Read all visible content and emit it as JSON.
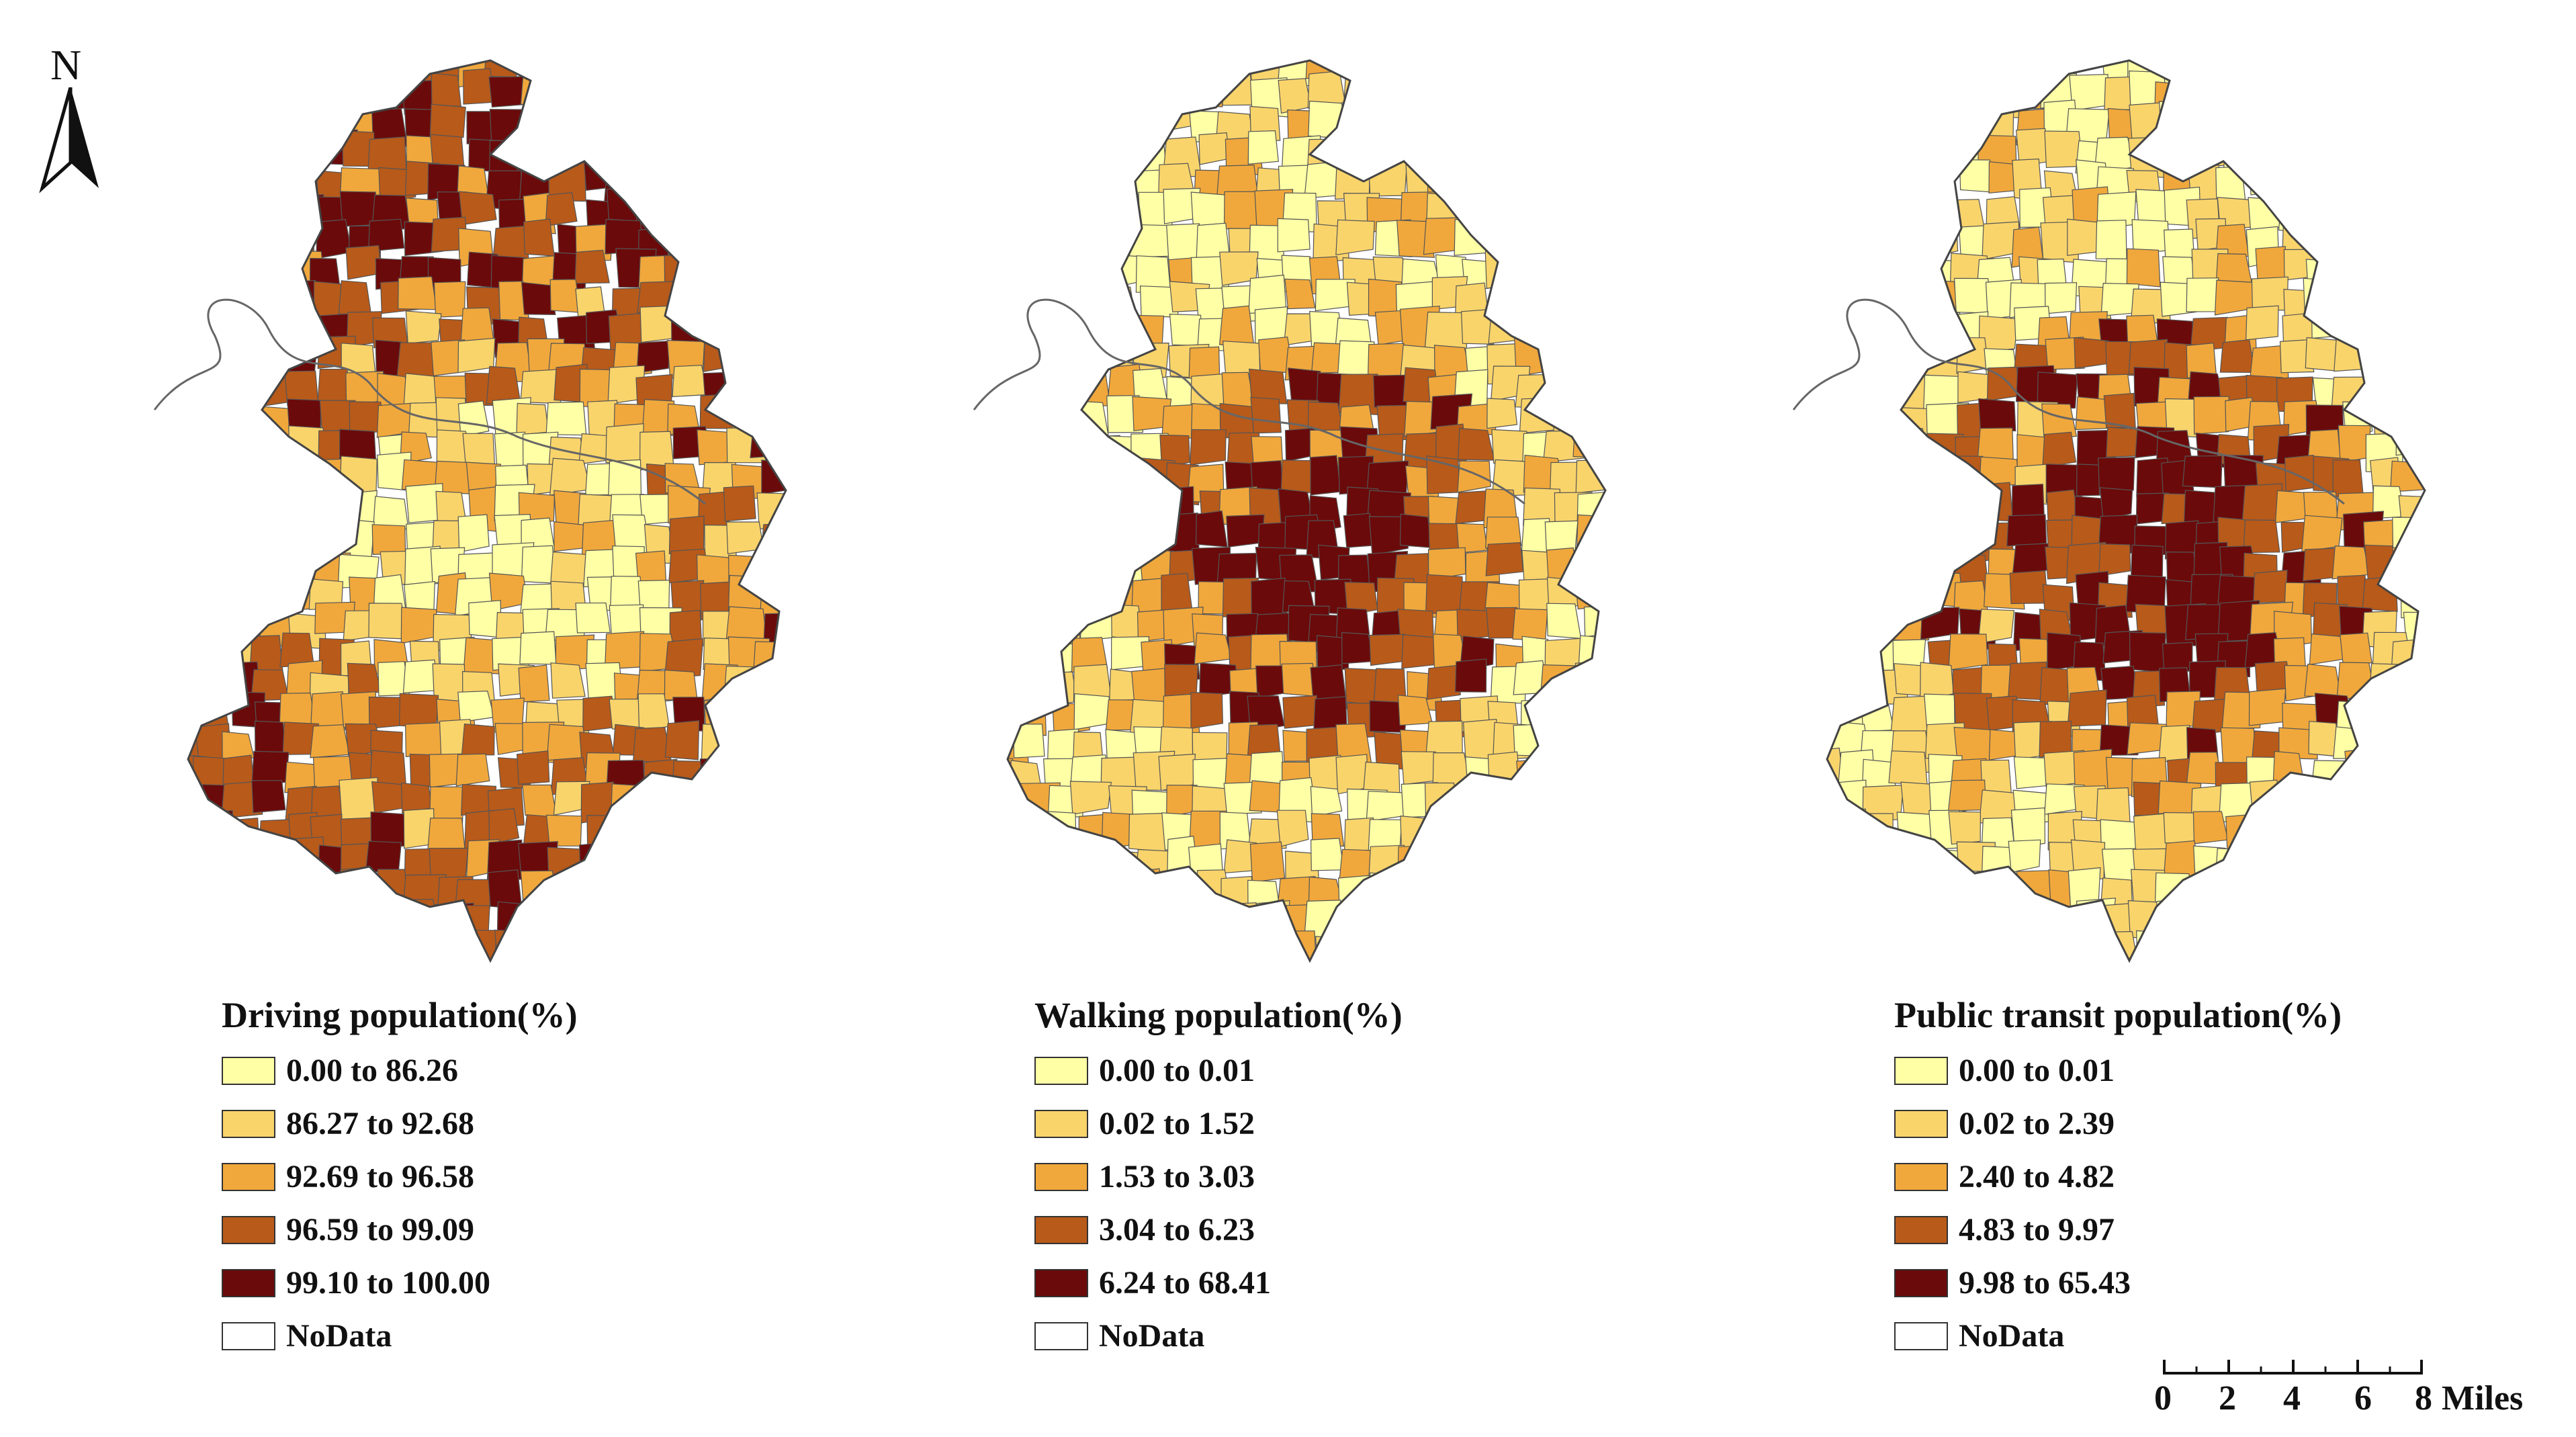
{
  "north": {
    "letter": "N",
    "icon": "north-arrow-icon"
  },
  "colors": {
    "class1": "#ffffa6",
    "class2": "#f9d46b",
    "class3": "#f0a83c",
    "class4": "#b85a1a",
    "class5": "#6b0a0a",
    "nodata": "#ffffff"
  },
  "maps": [
    {
      "title": "Driving population(%)",
      "classes": [
        {
          "label": "0.00 to 86.26"
        },
        {
          "label": "86.27 to 92.68"
        },
        {
          "label": "92.69 to 96.58"
        },
        {
          "label": "96.59 to 99.09"
        },
        {
          "label": "99.10 to 100.00"
        },
        {
          "label": "NoData"
        }
      ]
    },
    {
      "title": "Walking population(%)",
      "classes": [
        {
          "label": "0.00 to 0.01"
        },
        {
          "label": "0.02 to 1.52"
        },
        {
          "label": "1.53 to 3.03"
        },
        {
          "label": "3.04 to 6.23"
        },
        {
          "label": "6.24 to 68.41"
        },
        {
          "label": "NoData"
        }
      ]
    },
    {
      "title": "Public transit population(%)",
      "classes": [
        {
          "label": "0.00 to 0.01"
        },
        {
          "label": "0.02 to 2.39"
        },
        {
          "label": "2.40 to 4.82"
        },
        {
          "label": "4.83 to 9.97"
        },
        {
          "label": "9.98 to 65.43"
        },
        {
          "label": "NoData"
        }
      ]
    }
  ],
  "scale": {
    "ticks": [
      "0",
      "2",
      "4",
      "6",
      "8"
    ],
    "units": "Miles"
  }
}
